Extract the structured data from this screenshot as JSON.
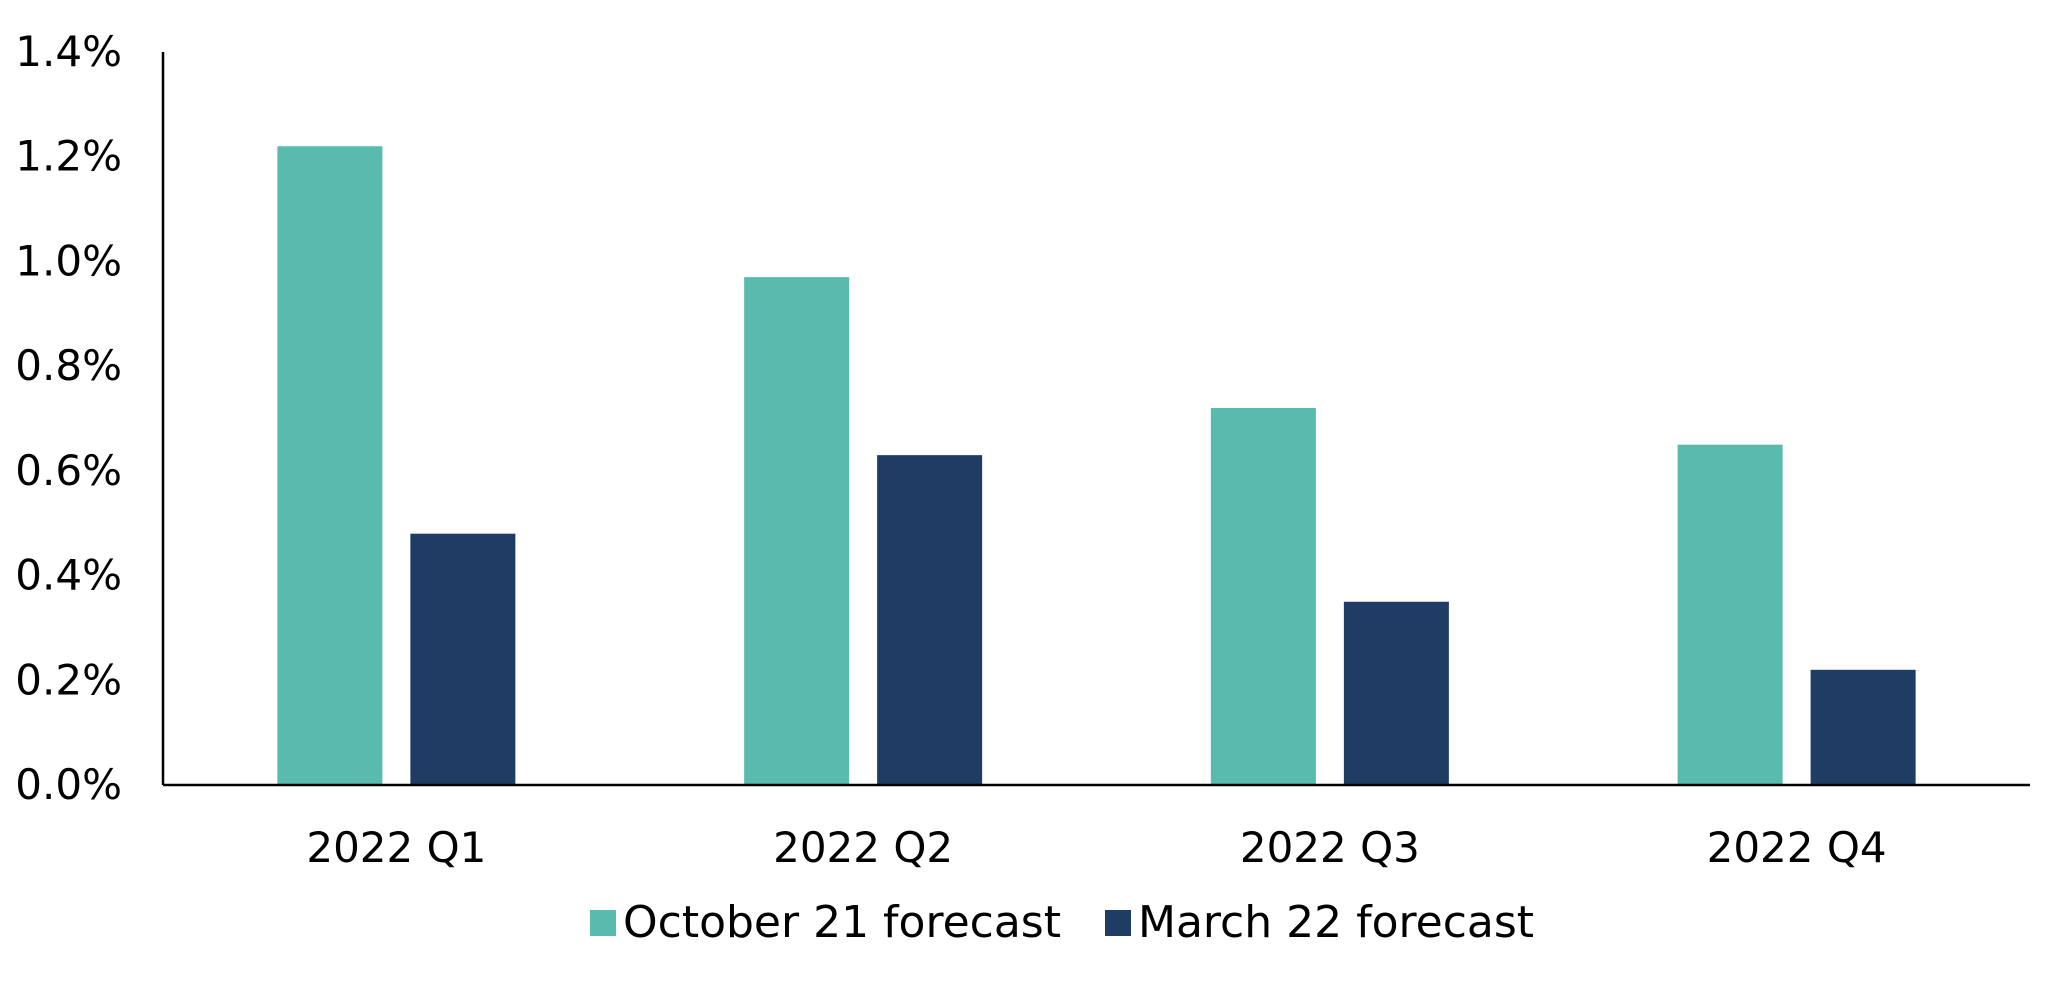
{
  "chart_data": {
    "type": "bar",
    "categories": [
      "2022 Q1",
      "2022 Q2",
      "2022 Q3",
      "2022 Q4"
    ],
    "series": [
      {
        "name": "October 21 forecast",
        "values": [
          1.22,
          0.97,
          0.72,
          0.65
        ],
        "color": "#59bbad"
      },
      {
        "name": "March 22 forecast",
        "values": [
          0.48,
          0.63,
          0.35,
          0.22
        ],
        "color": "#1e3c64"
      }
    ],
    "ylim": [
      0,
      1.4
    ],
    "yticks": [
      0.0,
      0.2,
      0.4,
      0.6,
      0.8,
      1.0,
      1.2,
      1.4
    ],
    "ytick_labels": [
      "0.0%",
      "0.2%",
      "0.4%",
      "0.6%",
      "0.8%",
      "1.0%",
      "1.2%",
      "1.4%"
    ],
    "title": "",
    "xlabel": "",
    "ylabel": "",
    "grid": false,
    "legend_position": "bottom-center"
  }
}
